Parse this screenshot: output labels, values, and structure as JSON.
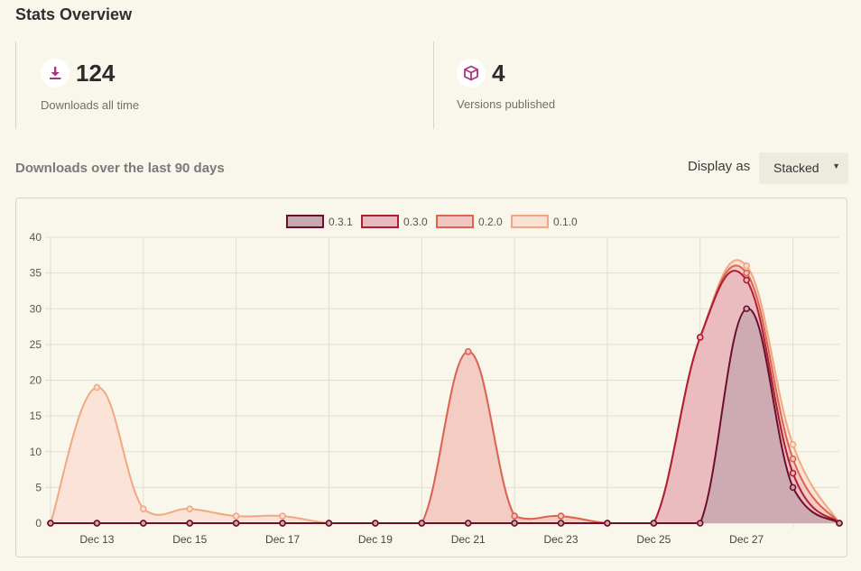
{
  "header": {
    "title": "Stats Overview"
  },
  "stats": [
    {
      "icon": "download-icon",
      "value": "124",
      "label": "Downloads all time"
    },
    {
      "icon": "package-icon",
      "value": "4",
      "label": "Versions published"
    }
  ],
  "downloads_section": {
    "title": "Downloads over the last 90 days",
    "display_label": "Display as",
    "display_value": "Stacked"
  },
  "colors": {
    "v031_line": "#6b0f2a",
    "v031_fill": "#c9a7b0",
    "v030_line": "#b01e33",
    "v030_fill": "#e8b9bf",
    "v020_line": "#dc6453",
    "v020_fill": "#f1c8c1",
    "v010_line": "#f1a882",
    "v010_fill": "#fbe0d4"
  },
  "chart_data": {
    "type": "area",
    "stacked": true,
    "ylim": [
      0,
      40
    ],
    "yticks": [
      0,
      5,
      10,
      15,
      20,
      25,
      30,
      35,
      40
    ],
    "x": [
      "Dec 12",
      "Dec 13",
      "Dec 14",
      "Dec 15",
      "Dec 16",
      "Dec 17",
      "Dec 18",
      "Dec 19",
      "Dec 20",
      "Dec 21",
      "Dec 22",
      "Dec 23",
      "Dec 24",
      "Dec 25",
      "Dec 26",
      "Dec 27",
      "Dec 28",
      "Dec 29"
    ],
    "xtick_labels": [
      "Dec 13",
      "Dec 15",
      "Dec 17",
      "Dec 19",
      "Dec 21",
      "Dec 23",
      "Dec 25",
      "Dec 27"
    ],
    "legend_position": "top",
    "series": [
      {
        "name": "0.3.1",
        "values": [
          0,
          0,
          0,
          0,
          0,
          0,
          0,
          0,
          0,
          0,
          0,
          0,
          0,
          0,
          0,
          30,
          5,
          0
        ]
      },
      {
        "name": "0.3.0",
        "values": [
          0,
          0,
          0,
          0,
          0,
          0,
          0,
          0,
          0,
          0,
          0,
          0,
          0,
          0,
          26,
          4,
          2,
          0
        ]
      },
      {
        "name": "0.2.0",
        "values": [
          0,
          0,
          0,
          0,
          0,
          0,
          0,
          0,
          0,
          24,
          1,
          1,
          0,
          0,
          0,
          1,
          2,
          0
        ]
      },
      {
        "name": "0.1.0",
        "values": [
          0,
          19,
          2,
          2,
          1,
          1,
          0,
          0,
          0,
          0,
          0,
          0,
          0,
          0,
          0,
          1,
          2,
          0
        ]
      }
    ]
  }
}
